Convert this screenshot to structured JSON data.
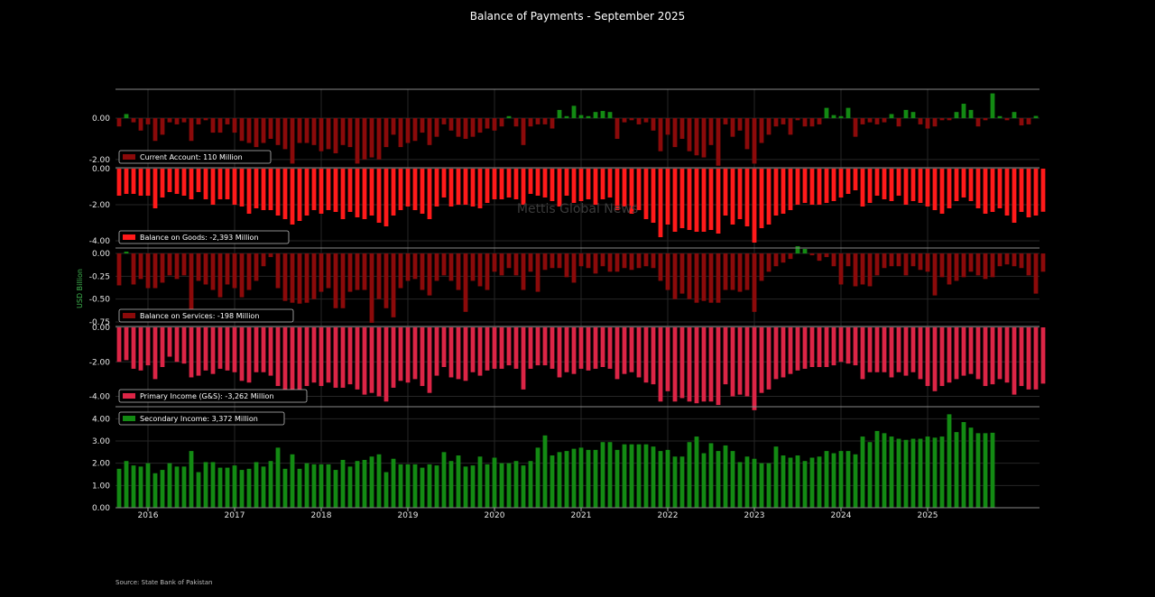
{
  "page": {
    "title": "Balance of Payments - September 2025",
    "source": "Source: State Bank of Pakistan",
    "watermark": "Mettis Global News",
    "ylabel": "USD Billion"
  },
  "colors": {
    "background": "#000000",
    "ca_negative": "#8b0a0a",
    "ca_positive": "#138a13",
    "goods": "#ff1a1a",
    "services": "#8b0a0a",
    "primary": "#dc2546",
    "secondary": "#138a13"
  },
  "chart_data": {
    "type": "bar",
    "x_start": "2015-09",
    "x_end": "2025-09",
    "x_ticks": [
      "2016",
      "2017",
      "2018",
      "2019",
      "2020",
      "2021",
      "2022",
      "2023",
      "2024",
      "2025"
    ],
    "panels": [
      {
        "name": "Current Account",
        "legend": "Current Account: 110 Million",
        "yticks": [
          0.0,
          -2.0
        ],
        "yticklabels": [
          "0.00",
          "-2.00"
        ],
        "ylim": [
          -2.4,
          1.4
        ],
        "values": [
          -0.4,
          0.2,
          -0.2,
          -0.6,
          -0.3,
          -1.1,
          -0.8,
          -0.2,
          -0.3,
          -0.2,
          -1.1,
          -0.3,
          -0.1,
          -0.7,
          -0.7,
          -0.3,
          -0.7,
          -1.1,
          -1.2,
          -1.4,
          -1.2,
          -1.0,
          -1.3,
          -1.5,
          -2.2,
          -1.2,
          -1.2,
          -1.3,
          -1.6,
          -1.5,
          -1.7,
          -1.3,
          -1.4,
          -2.2,
          -2.0,
          -1.9,
          -2.0,
          -1.4,
          -0.8,
          -1.4,
          -1.2,
          -1.1,
          -0.7,
          -1.3,
          -0.9,
          -0.3,
          -0.6,
          -0.9,
          -1.0,
          -0.9,
          -0.7,
          -0.5,
          -0.6,
          -0.4,
          0.1,
          -0.4,
          -1.3,
          -0.4,
          -0.3,
          -0.3,
          -0.5,
          0.4,
          0.1,
          0.6,
          0.15,
          0.1,
          0.3,
          0.35,
          0.3,
          -1.0,
          -0.2,
          -0.1,
          -0.3,
          -0.2,
          -0.6,
          -1.6,
          -0.8,
          -1.4,
          -1.0,
          -1.6,
          -1.8,
          -1.9,
          -1.3,
          -2.3,
          -0.3,
          -0.9,
          -0.6,
          -1.5,
          -2.2,
          -1.2,
          -0.8,
          -0.4,
          -0.3,
          -0.8,
          -0.1,
          -0.4,
          -0.4,
          -0.3,
          0.5,
          0.15,
          0.1,
          0.5,
          -0.9,
          -0.3,
          -0.2,
          -0.3,
          -0.2,
          0.2,
          -0.4,
          0.4,
          0.3,
          -0.3,
          -0.5,
          -0.4,
          -0.1,
          -0.1,
          0.3,
          0.7,
          0.4,
          -0.4,
          -0.1,
          1.2,
          0.1,
          -0.1,
          0.3,
          -0.35,
          -0.3,
          0.11
        ]
      },
      {
        "name": "Balance on Goods",
        "legend": "Balance on Goods: -2,393 Million",
        "yticks": [
          0.0,
          -2.0,
          -4.0
        ],
        "yticklabels": [
          "0.00",
          "-2.00",
          "-4.00"
        ],
        "ylim": [
          -4.4,
          0.0
        ],
        "values": [
          -1.5,
          -1.4,
          -1.4,
          -1.5,
          -1.5,
          -2.2,
          -1.6,
          -1.3,
          -1.4,
          -1.5,
          -1.7,
          -1.3,
          -1.7,
          -2.0,
          -1.7,
          -1.7,
          -2.0,
          -2.1,
          -2.5,
          -2.2,
          -2.3,
          -2.3,
          -2.6,
          -2.8,
          -3.1,
          -2.9,
          -2.6,
          -2.3,
          -2.5,
          -2.3,
          -2.4,
          -2.8,
          -2.4,
          -2.7,
          -2.8,
          -2.6,
          -3.0,
          -3.2,
          -2.6,
          -2.3,
          -2.1,
          -2.3,
          -2.5,
          -2.8,
          -2.1,
          -1.6,
          -2.1,
          -2.0,
          -2.0,
          -2.1,
          -2.2,
          -1.9,
          -1.7,
          -1.7,
          -1.6,
          -1.7,
          -2.0,
          -1.4,
          -1.5,
          -1.6,
          -1.8,
          -2.1,
          -1.5,
          -1.9,
          -1.8,
          -1.7,
          -2.0,
          -1.7,
          -1.6,
          -2.3,
          -2.1,
          -2.5,
          -2.3,
          -2.8,
          -3.0,
          -3.8,
          -3.1,
          -3.5,
          -3.3,
          -3.4,
          -3.5,
          -3.5,
          -3.4,
          -3.6,
          -2.6,
          -3.1,
          -2.8,
          -3.2,
          -4.1,
          -3.3,
          -3.1,
          -2.6,
          -2.5,
          -2.3,
          -2.0,
          -1.9,
          -2.0,
          -2.0,
          -1.9,
          -1.8,
          -1.6,
          -1.4,
          -1.2,
          -2.1,
          -1.9,
          -1.5,
          -1.7,
          -1.8,
          -1.5,
          -2.0,
          -1.8,
          -1.9,
          -2.1,
          -2.3,
          -2.5,
          -2.2,
          -1.8,
          -1.6,
          -1.8,
          -2.2,
          -2.5,
          -2.4,
          -2.2,
          -2.6,
          -3.0,
          -2.4,
          -2.7,
          -2.6,
          -2.39
        ]
      },
      {
        "name": "Balance on Services",
        "legend": "Balance on Services: -198 Million",
        "yticks": [
          0.0,
          -0.25,
          -0.5,
          -0.75
        ],
        "yticklabels": [
          "0.00",
          "-0.25",
          "-0.50",
          "-0.75"
        ],
        "ylim": [
          -0.8,
          0.05
        ],
        "values": [
          -0.35,
          0.02,
          -0.34,
          -0.28,
          -0.38,
          -0.38,
          -0.32,
          -0.24,
          -0.28,
          -0.24,
          -0.62,
          -0.3,
          -0.34,
          -0.4,
          -0.48,
          -0.34,
          -0.38,
          -0.48,
          -0.4,
          -0.3,
          -0.14,
          -0.04,
          -0.38,
          -0.52,
          -0.54,
          -0.55,
          -0.54,
          -0.5,
          -0.42,
          -0.38,
          -0.6,
          -0.6,
          -0.42,
          -0.4,
          -0.4,
          -0.76,
          -0.5,
          -0.6,
          -0.7,
          -0.38,
          -0.3,
          -0.28,
          -0.4,
          -0.46,
          -0.3,
          -0.24,
          -0.3,
          -0.4,
          -0.64,
          -0.3,
          -0.36,
          -0.4,
          -0.2,
          -0.24,
          -0.16,
          -0.24,
          -0.4,
          -0.2,
          -0.42,
          -0.18,
          -0.16,
          -0.16,
          -0.26,
          -0.32,
          -0.14,
          -0.16,
          -0.22,
          -0.14,
          -0.2,
          -0.2,
          -0.16,
          -0.18,
          -0.16,
          -0.14,
          -0.16,
          -0.3,
          -0.4,
          -0.5,
          -0.44,
          -0.5,
          -0.54,
          -0.52,
          -0.54,
          -0.54,
          -0.4,
          -0.4,
          -0.42,
          -0.4,
          -0.64,
          -0.3,
          -0.2,
          -0.14,
          -0.1,
          -0.06,
          0.08,
          0.05,
          -0.02,
          -0.08,
          -0.04,
          -0.14,
          -0.34,
          -0.14,
          -0.36,
          -0.34,
          -0.36,
          -0.24,
          -0.16,
          -0.14,
          -0.14,
          -0.24,
          -0.14,
          -0.18,
          -0.2,
          -0.46,
          -0.26,
          -0.34,
          -0.3,
          -0.26,
          -0.2,
          -0.24,
          -0.28,
          -0.26,
          -0.14,
          -0.12,
          -0.14,
          -0.16,
          -0.24,
          -0.44,
          -0.2
        ]
      },
      {
        "name": "Primary Income (G&S)",
        "legend": "Primary Income (G&S): -3,262 Million",
        "yticks": [
          0.0,
          -2.0,
          -4.0
        ],
        "yticklabels": [
          "0.00",
          "-2.00",
          "-4.00"
        ],
        "ylim": [
          -4.6,
          0.0
        ],
        "values": [
          -2.0,
          -1.9,
          -2.4,
          -2.5,
          -2.2,
          -3.0,
          -2.3,
          -1.7,
          -2.0,
          -2.1,
          -2.9,
          -2.8,
          -2.5,
          -2.7,
          -2.4,
          -2.5,
          -2.6,
          -3.1,
          -3.2,
          -2.6,
          -2.6,
          -2.8,
          -3.4,
          -3.9,
          -4.1,
          -3.9,
          -3.4,
          -3.2,
          -3.4,
          -3.2,
          -3.5,
          -3.5,
          -3.3,
          -3.6,
          -3.9,
          -3.8,
          -4.0,
          -4.3,
          -3.5,
          -3.1,
          -3.2,
          -3.0,
          -3.4,
          -3.8,
          -2.8,
          -2.3,
          -2.9,
          -3.0,
          -3.1,
          -2.6,
          -2.8,
          -2.5,
          -2.4,
          -2.4,
          -2.2,
          -2.4,
          -3.6,
          -2.4,
          -2.2,
          -2.2,
          -2.4,
          -2.9,
          -2.6,
          -2.7,
          -2.4,
          -2.5,
          -2.4,
          -2.3,
          -2.4,
          -3.0,
          -2.7,
          -2.6,
          -2.9,
          -3.2,
          -3.3,
          -4.3,
          -3.7,
          -4.3,
          -4.1,
          -4.3,
          -4.4,
          -4.3,
          -4.3,
          -4.5,
          -3.3,
          -4.0,
          -3.9,
          -4.0,
          -4.8,
          -3.8,
          -3.6,
          -3.0,
          -2.9,
          -2.7,
          -2.5,
          -2.4,
          -2.3,
          -2.3,
          -2.3,
          -2.2,
          -2.0,
          -2.1,
          -2.2,
          -3.0,
          -2.6,
          -2.6,
          -2.6,
          -2.9,
          -2.6,
          -2.8,
          -2.6,
          -3.0,
          -3.4,
          -3.7,
          -3.4,
          -3.2,
          -3.0,
          -2.8,
          -2.7,
          -3.0,
          -3.4,
          -3.3,
          -3.0,
          -3.2,
          -3.9,
          -3.4,
          -3.6,
          -3.6,
          -3.26
        ]
      },
      {
        "name": "Secondary Income",
        "legend": "Secondary Income: 3,372 Million",
        "yticks": [
          0.0,
          1.0,
          2.0,
          3.0,
          4.0
        ],
        "yticklabels": [
          "0.00",
          "1.00",
          "2.00",
          "3.00",
          "4.00"
        ],
        "ylim": [
          0.0,
          4.5
        ],
        "values": [
          1.75,
          2.1,
          1.9,
          1.85,
          2.0,
          1.55,
          1.7,
          2.0,
          1.85,
          1.85,
          2.55,
          1.6,
          2.05,
          2.05,
          1.8,
          1.8,
          1.9,
          1.7,
          1.75,
          2.05,
          1.85,
          2.1,
          2.7,
          1.75,
          2.4,
          1.75,
          2.0,
          1.95,
          1.95,
          1.95,
          1.7,
          2.15,
          1.85,
          2.1,
          2.15,
          2.3,
          2.4,
          1.6,
          2.2,
          1.95,
          1.95,
          1.95,
          1.8,
          1.95,
          1.9,
          2.5,
          2.1,
          2.35,
          1.85,
          1.9,
          2.3,
          1.95,
          2.25,
          2.0,
          2.0,
          2.1,
          1.9,
          2.1,
          2.7,
          3.25,
          2.35,
          2.5,
          2.55,
          2.65,
          2.7,
          2.6,
          2.6,
          2.95,
          2.95,
          2.6,
          2.85,
          2.85,
          2.85,
          2.85,
          2.75,
          2.55,
          2.6,
          2.3,
          2.3,
          2.95,
          3.2,
          2.45,
          2.9,
          2.55,
          2.8,
          2.55,
          2.05,
          2.3,
          2.2,
          2.0,
          2.0,
          2.75,
          2.35,
          2.25,
          2.35,
          2.1,
          2.25,
          2.3,
          2.55,
          2.45,
          2.55,
          2.55,
          2.4,
          3.2,
          2.95,
          3.45,
          3.35,
          3.2,
          3.1,
          3.05,
          3.1,
          3.1,
          3.2,
          3.15,
          3.2,
          4.2,
          3.4,
          3.85,
          3.6,
          3.35,
          3.35,
          3.37
        ]
      }
    ]
  }
}
